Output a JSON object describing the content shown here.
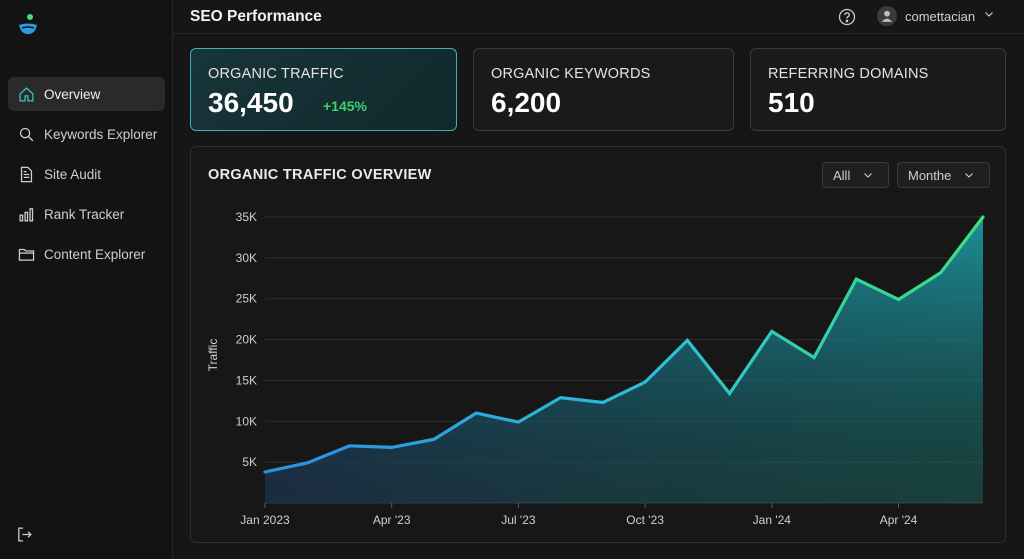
{
  "app": {
    "page_title": "SEO Performance"
  },
  "logo_icon": "brand-logo-icon",
  "sidebar": {
    "items": [
      {
        "label": "Overview",
        "icon": "home-icon",
        "active": true
      },
      {
        "label": "Keywords Explorer",
        "icon": "search-icon",
        "active": false
      },
      {
        "label": "Site Audit",
        "icon": "document-icon",
        "active": false
      },
      {
        "label": "Rank Tracker",
        "icon": "bar-chart-icon",
        "active": false
      },
      {
        "label": "Content Explorer",
        "icon": "folder-icon",
        "active": false
      }
    ],
    "logout_icon": "logout-icon"
  },
  "topbar": {
    "help_icon": "help-icon",
    "user": {
      "name": "comettacian"
    }
  },
  "kpis": [
    {
      "label": "ORGANIC TRAFFIC",
      "value": "36,450",
      "delta": "+145%"
    },
    {
      "label": "ORGANIC KEYWORDS",
      "value": "6,200"
    },
    {
      "label": "REFERRING DOMAINS",
      "value": "510"
    }
  ],
  "panel": {
    "title": "ORGANIC TRAFFIC OVERVIEW",
    "filter_1": "Alll",
    "filter_2": "Monthe"
  },
  "colors": {
    "accent": "#37c8c0",
    "positive": "#3ecf6e",
    "line_start": "#2a8fe0",
    "line_end": "#3ee07a"
  },
  "chart_data": {
    "type": "area",
    "ylabel": "Traffic",
    "xlabel": "",
    "yticks": [
      5000,
      10000,
      15000,
      20000,
      25000,
      30000,
      35000
    ],
    "ytick_labels": [
      "5K",
      "10K",
      "15K",
      "20K",
      "25K",
      "30K",
      "35K"
    ],
    "xtick_labels": [
      "Jan 2023",
      "Apr '23",
      "Jul '23",
      "Oct '23",
      "Jan '24",
      "Apr '24"
    ],
    "xtick_positions": [
      0,
      3,
      6,
      9,
      12,
      15
    ],
    "ylim": [
      0,
      35000
    ],
    "grid": true,
    "x": [
      0,
      1,
      2,
      3,
      4,
      5,
      6,
      7,
      8,
      9,
      10,
      11,
      12,
      13,
      14,
      15,
      16,
      17
    ],
    "values": [
      3800,
      4900,
      7000,
      6800,
      7800,
      11000,
      9900,
      12900,
      12300,
      14800,
      19900,
      13400,
      21000,
      17800,
      27400,
      24900,
      28200,
      35000
    ]
  }
}
